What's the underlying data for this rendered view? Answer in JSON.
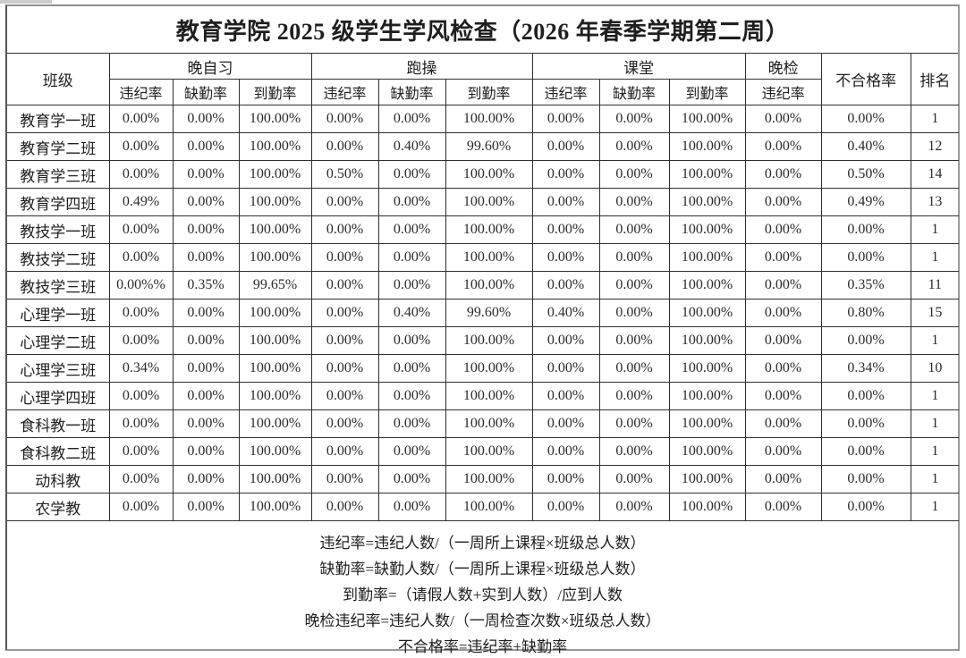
{
  "page": {
    "title": "教育学院 2025 级学生学风检查（2026 年春季学期第二周）"
  },
  "table": {
    "headers": {
      "class_col": "班级",
      "groups": [
        {
          "label": "晚自习",
          "subcols": [
            "违纪率",
            "缺勤率",
            "到勤率"
          ]
        },
        {
          "label": "跑操",
          "subcols": [
            "违纪率",
            "缺勤率",
            "到勤率"
          ]
        },
        {
          "label": "课堂",
          "subcols": [
            "违纪率",
            "缺勤率",
            "到勤率"
          ]
        },
        {
          "label": "晚检",
          "subcols": [
            "违纪率"
          ]
        }
      ],
      "fail_col": "不合格率",
      "rank_col": "排名"
    },
    "rows": [
      {
        "class_name": "教育学一班",
        "evening_study": [
          "0.00%",
          "0.00%",
          "100.00%"
        ],
        "running": [
          "0.00%",
          "0.00%",
          "100.00%"
        ],
        "classroom": [
          "0.00%",
          "0.00%",
          "100.00%"
        ],
        "evening_check": "0.00%",
        "fail_rate": "0.00%",
        "rank": "1"
      },
      {
        "class_name": "教育学二班",
        "evening_study": [
          "0.00%",
          "0.00%",
          "100.00%"
        ],
        "running": [
          "0.00%",
          "0.40%",
          "99.60%"
        ],
        "classroom": [
          "0.00%",
          "0.00%",
          "100.00%"
        ],
        "evening_check": "0.00%",
        "fail_rate": "0.40%",
        "rank": "12"
      },
      {
        "class_name": "教育学三班",
        "evening_study": [
          "0.00%",
          "0.00%",
          "100.00%"
        ],
        "running": [
          "0.50%",
          "0.00%",
          "100.00%"
        ],
        "classroom": [
          "0.00%",
          "0.00%",
          "100.00%"
        ],
        "evening_check": "0.00%",
        "fail_rate": "0.50%",
        "rank": "14"
      },
      {
        "class_name": "教育学四班",
        "evening_study": [
          "0.49%",
          "0.00%",
          "100.00%"
        ],
        "running": [
          "0.00%",
          "0.00%",
          "100.00%"
        ],
        "classroom": [
          "0.00%",
          "0.00%",
          "100.00%"
        ],
        "evening_check": "0.00%",
        "fail_rate": "0.49%",
        "rank": "13"
      },
      {
        "class_name": "教技学一班",
        "evening_study": [
          "0.00%",
          "0.00%",
          "100.00%"
        ],
        "running": [
          "0.00%",
          "0.00%",
          "100.00%"
        ],
        "classroom": [
          "0.00%",
          "0.00%",
          "100.00%"
        ],
        "evening_check": "0.00%",
        "fail_rate": "0.00%",
        "rank": "1"
      },
      {
        "class_name": "教技学二班",
        "evening_study": [
          "0.00%",
          "0.00%",
          "100.00%"
        ],
        "running": [
          "0.00%",
          "0.00%",
          "100.00%"
        ],
        "classroom": [
          "0.00%",
          "0.00%",
          "100.00%"
        ],
        "evening_check": "0.00%",
        "fail_rate": "0.00%",
        "rank": "1"
      },
      {
        "class_name": "教技学三班",
        "evening_study": [
          "0.00%%",
          "0.35%",
          "99.65%"
        ],
        "running": [
          "0.00%",
          "0.00%",
          "100.00%"
        ],
        "classroom": [
          "0.00%",
          "0.00%",
          "100.00%"
        ],
        "evening_check": "0.00%",
        "fail_rate": "0.35%",
        "rank": "11"
      },
      {
        "class_name": "心理学一班",
        "evening_study": [
          "0.00%",
          "0.00%",
          "100.00%"
        ],
        "running": [
          "0.00%",
          "0.40%",
          "99.60%"
        ],
        "classroom": [
          "0.40%",
          "0.00%",
          "100.00%"
        ],
        "evening_check": "0.00%",
        "fail_rate": "0.80%",
        "rank": "15"
      },
      {
        "class_name": "心理学二班",
        "evening_study": [
          "0.00%",
          "0.00%",
          "100.00%"
        ],
        "running": [
          "0.00%",
          "0.00%",
          "100.00%"
        ],
        "classroom": [
          "0.00%",
          "0.00%",
          "100.00%"
        ],
        "evening_check": "0.00%",
        "fail_rate": "0.00%",
        "rank": "1"
      },
      {
        "class_name": "心理学三班",
        "evening_study": [
          "0.34%",
          "0.00%",
          "100.00%"
        ],
        "running": [
          "0.00%",
          "0.00%",
          "100.00%"
        ],
        "classroom": [
          "0.00%",
          "0.00%",
          "100.00%"
        ],
        "evening_check": "0.00%",
        "fail_rate": "0.34%",
        "rank": "10"
      },
      {
        "class_name": "心理学四班",
        "evening_study": [
          "0.00%",
          "0.00%",
          "100.00%"
        ],
        "running": [
          "0.00%",
          "0.00%",
          "100.00%"
        ],
        "classroom": [
          "0.00%",
          "0.00%",
          "100.00%"
        ],
        "evening_check": "0.00%",
        "fail_rate": "0.00%",
        "rank": "1"
      },
      {
        "class_name": "食科教一班",
        "evening_study": [
          "0.00%",
          "0.00%",
          "100.00%"
        ],
        "running": [
          "0.00%",
          "0.00%",
          "100.00%"
        ],
        "classroom": [
          "0.00%",
          "0.00%",
          "100.00%"
        ],
        "evening_check": "0.00%",
        "fail_rate": "0.00%",
        "rank": "1"
      },
      {
        "class_name": "食科教二班",
        "evening_study": [
          "0.00%",
          "0.00%",
          "100.00%"
        ],
        "running": [
          "0.00%",
          "0.00%",
          "100.00%"
        ],
        "classroom": [
          "0.00%",
          "0.00%",
          "100.00%"
        ],
        "evening_check": "0.00%",
        "fail_rate": "0.00%",
        "rank": "1"
      },
      {
        "class_name": "动科教",
        "evening_study": [
          "0.00%",
          "0.00%",
          "100.00%"
        ],
        "running": [
          "0.00%",
          "0.00%",
          "100.00%"
        ],
        "classroom": [
          "0.00%",
          "0.00%",
          "100.00%"
        ],
        "evening_check": "0.00%",
        "fail_rate": "0.00%",
        "rank": "1"
      },
      {
        "class_name": "农学教",
        "evening_study": [
          "0.00%",
          "0.00%",
          "100.00%"
        ],
        "running": [
          "0.00%",
          "0.00%",
          "100.00%"
        ],
        "classroom": [
          "0.00%",
          "0.00%",
          "100.00%"
        ],
        "evening_check": "0.00%",
        "fail_rate": "0.00%",
        "rank": "1"
      }
    ]
  },
  "notes": [
    "违纪率=违纪人数/（一周所上课程×班级总人数）",
    "缺勤率=缺勤人数/（一周所上课程×班级总人数）",
    "到勤率=（请假人数+实到人数）/应到人数",
    "晚检违纪率=违纪人数/（一周检查次数×班级总人数）",
    "不合格率=违纪率+缺勤率"
  ]
}
